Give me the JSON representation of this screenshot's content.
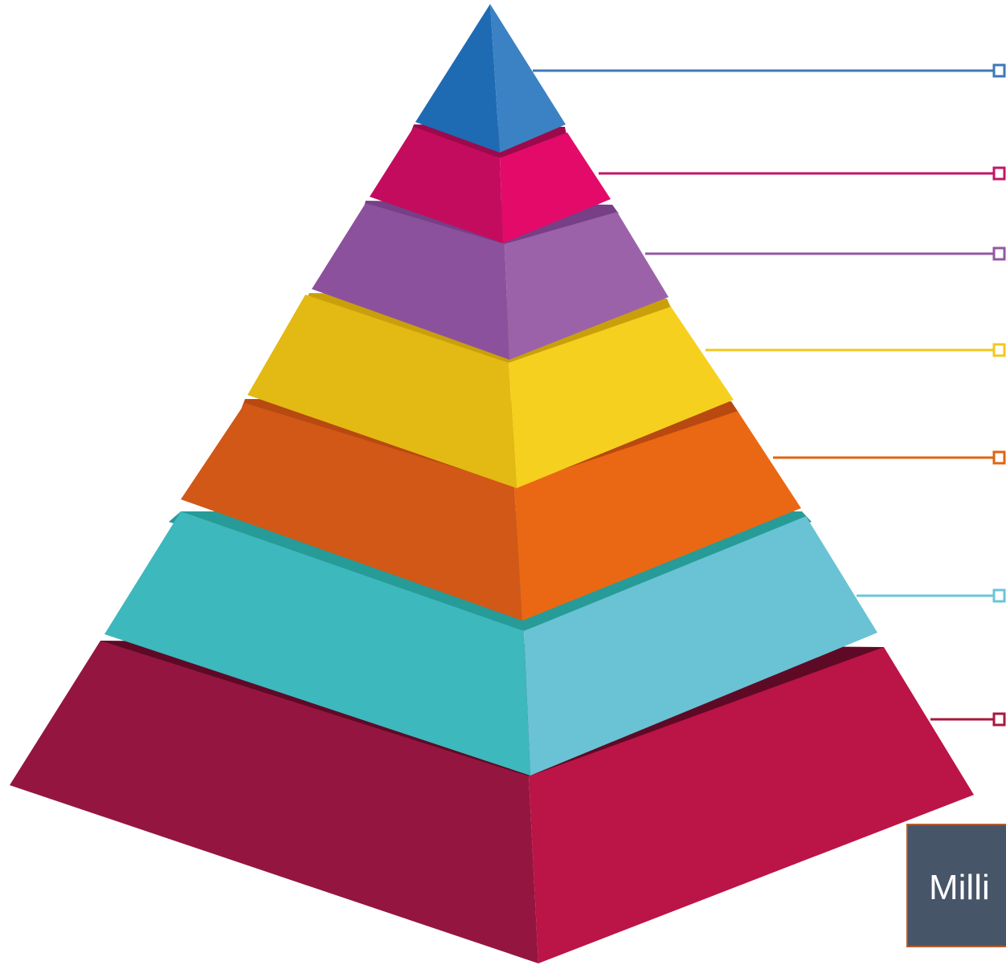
{
  "pyramid": {
    "levels": [
      {
        "name": "level-1-apex",
        "color_left": "#1e6bb4",
        "color_right": "#3b82c4",
        "connector_color": "#3b78b8"
      },
      {
        "name": "level-2",
        "color_left": "#c40c5f",
        "color_right": "#e30a6a",
        "connector_color": "#c0166a"
      },
      {
        "name": "level-3",
        "color_left": "#8c519c",
        "color_right": "#9b62a9",
        "connector_color": "#9457a3"
      },
      {
        "name": "level-4",
        "color_left": "#e3b913",
        "color_right": "#f5d01f",
        "connector_color": "#f2c81c"
      },
      {
        "name": "level-5",
        "color_left": "#d15816",
        "color_right": "#ea6813",
        "connector_color": "#e06412"
      },
      {
        "name": "level-6",
        "color_left": "#3db8bd",
        "color_right": "#69c3d4",
        "connector_color": "#6cc4d8"
      },
      {
        "name": "level-7-base",
        "color_left": "#941640",
        "color_right": "#bb1447",
        "connector_color": "#a8183f"
      }
    ]
  },
  "caption": {
    "text": "Milli"
  }
}
